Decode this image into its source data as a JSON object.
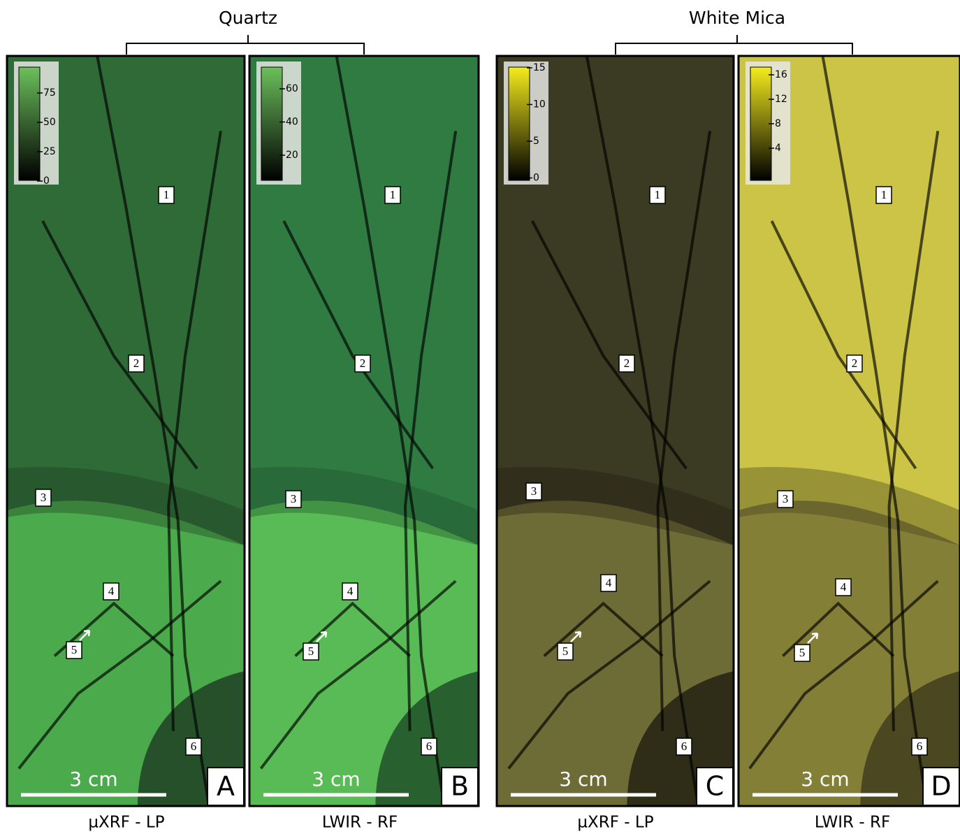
{
  "groups": [
    {
      "title": "Quartz"
    },
    {
      "title": "White Mica"
    }
  ],
  "panels": [
    {
      "letter": "A",
      "caption": "µXRF - LP",
      "scale_bar": "3 cm",
      "colorbar_ticks": [
        "75",
        "50",
        "25",
        "0"
      ],
      "markers": [
        "1",
        "2",
        "3",
        "4",
        "5",
        "6"
      ]
    },
    {
      "letter": "B",
      "caption": "LWIR - RF",
      "scale_bar": "3 cm",
      "colorbar_ticks": [
        "60",
        "40",
        "20"
      ],
      "markers": [
        "1",
        "2",
        "3",
        "4",
        "5",
        "6"
      ]
    },
    {
      "letter": "C",
      "caption": "µXRF - LP",
      "scale_bar": "3 cm",
      "colorbar_ticks": [
        "15",
        "10",
        "5",
        "0"
      ],
      "markers": [
        "1",
        "2",
        "3",
        "4",
        "5",
        "6"
      ]
    },
    {
      "letter": "D",
      "caption": "LWIR - RF",
      "scale_bar": "3 cm",
      "colorbar_ticks": [
        "16",
        "12",
        "8",
        "4"
      ],
      "markers": [
        "1",
        "2",
        "3",
        "4",
        "5",
        "6"
      ]
    }
  ]
}
